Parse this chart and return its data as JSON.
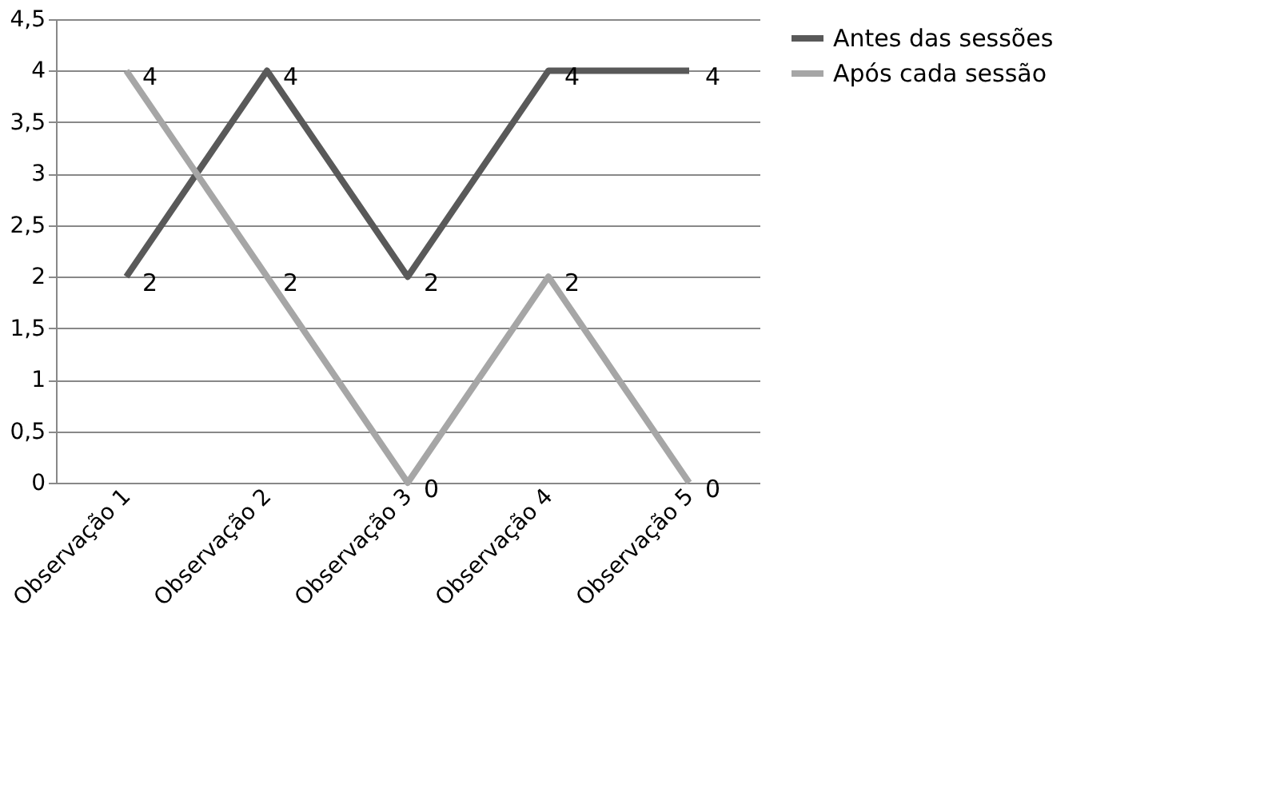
{
  "chart_data": {
    "type": "line",
    "categories": [
      "Observação 1",
      "Observação 2",
      "Observação 3",
      "Observação 4",
      "Observação 5"
    ],
    "series": [
      {
        "name": "Antes das sessões",
        "color": "#595959",
        "values": [
          2,
          4,
          2,
          4,
          4
        ]
      },
      {
        "name": "Após cada sessão",
        "color": "#a6a6a6",
        "values": [
          4,
          2,
          0,
          2,
          0
        ]
      }
    ],
    "ylim": [
      0,
      4.5
    ],
    "yticks": [
      0,
      {
        "value": 0.5,
        "label": "0,5"
      },
      1,
      {
        "value": 1.5,
        "label": "1,5"
      },
      2,
      {
        "value": 2.5,
        "label": "2,5"
      },
      3,
      {
        "value": 3.5,
        "label": "3,5"
      },
      4,
      {
        "value": 4.5,
        "label": "4,5"
      }
    ],
    "grid": "y",
    "legend": "right",
    "data_labels": true,
    "marker": "none",
    "line_style": "solid"
  }
}
